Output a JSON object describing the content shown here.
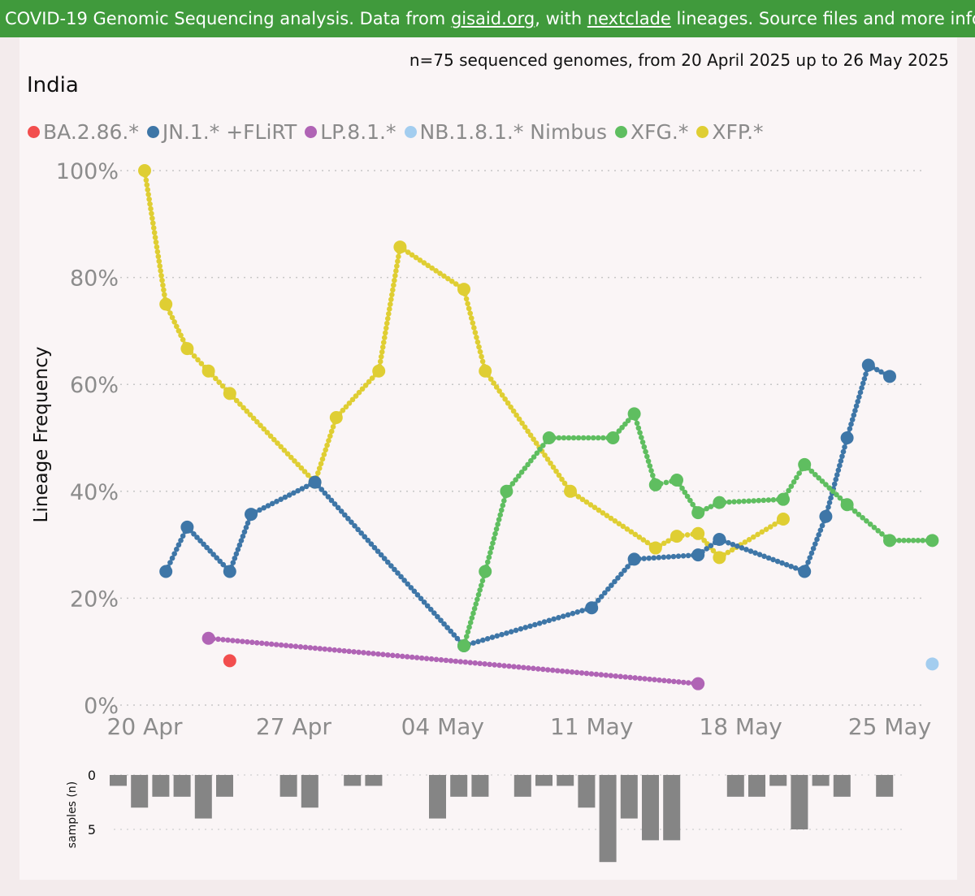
{
  "banner": {
    "prefix": "COVID-19 Genomic Sequencing analysis. Data from ",
    "link1": "gisaid.org",
    "middle": ", with ",
    "link2": "nextclade",
    "suffix": " lineages. Source files and more info"
  },
  "header": {
    "subtitle": "n=75 sequenced genomes, from 20 April 2025 up to 26 May 2025",
    "title": "India"
  },
  "legend": [
    {
      "name": "BA.2.86.*",
      "color": "#f24e4e"
    },
    {
      "name": "JN.1.* +FLiRT",
      "color": "#3e76a7"
    },
    {
      "name": "LP.8.1.*",
      "color": "#b064b5"
    },
    {
      "name": "NB.1.8.1.* Nimbus",
      "color": "#a3cdef"
    },
    {
      "name": "XFG.*",
      "color": "#5fbe60"
    },
    {
      "name": "XFP.*",
      "color": "#dfce33"
    }
  ],
  "chart_data": [
    {
      "type": "line",
      "ylabel": "Lineage Frequency",
      "ylim": [
        0,
        100
      ],
      "y_ticks": [
        "0%",
        "20%",
        "40%",
        "60%",
        "80%",
        "100%"
      ],
      "x_range": [
        "2025-04-20",
        "2025-05-26"
      ],
      "x_ticks": [
        {
          "date": "2025-04-20",
          "label": "20 Apr"
        },
        {
          "date": "2025-04-27",
          "label": "27 Apr"
        },
        {
          "date": "2025-05-04",
          "label": "04 May"
        },
        {
          "date": "2025-05-11",
          "label": "11 May"
        },
        {
          "date": "2025-05-18",
          "label": "18 May"
        },
        {
          "date": "2025-05-25",
          "label": "25 May"
        }
      ],
      "grid": "horizontal dotted",
      "legend_position": "top",
      "series": [
        {
          "name": "XFP.*",
          "color": "#dfce33",
          "points": [
            [
              "2025-04-20",
              100
            ],
            [
              "2025-04-21",
              75
            ],
            [
              "2025-04-22",
              66.7
            ],
            [
              "2025-04-23",
              62.5
            ],
            [
              "2025-04-24",
              58.3
            ],
            [
              "2025-04-28",
              41.7
            ],
            [
              "2025-04-29",
              53.8
            ],
            [
              "2025-05-01",
              62.5
            ],
            [
              "2025-05-02",
              85.7
            ],
            [
              "2025-05-05",
              77.8
            ],
            [
              "2025-05-06",
              62.5
            ],
            [
              "2025-05-10",
              40
            ],
            [
              "2025-05-14",
              29.4
            ],
            [
              "2025-05-15",
              31.6
            ],
            [
              "2025-05-16",
              32.1
            ],
            [
              "2025-05-17",
              27.6
            ],
            [
              "2025-05-20",
              34.8
            ]
          ]
        },
        {
          "name": "JN.1.* +FLiRT",
          "color": "#3e76a7",
          "points": [
            [
              "2025-04-21",
              25
            ],
            [
              "2025-04-22",
              33.3
            ],
            [
              "2025-04-24",
              25
            ],
            [
              "2025-04-25",
              35.7
            ],
            [
              "2025-04-28",
              41.7
            ],
            [
              "2025-05-05",
              11.1
            ],
            [
              "2025-05-11",
              18.2
            ],
            [
              "2025-05-13",
              27.3
            ],
            [
              "2025-05-16",
              28.1
            ],
            [
              "2025-05-17",
              31
            ],
            [
              "2025-05-21",
              25
            ],
            [
              "2025-05-22",
              35.3
            ],
            [
              "2025-05-23",
              50
            ],
            [
              "2025-05-24",
              63.6
            ],
            [
              "2025-05-25",
              61.5
            ]
          ]
        },
        {
          "name": "XFG.*",
          "color": "#5fbe60",
          "points": [
            [
              "2025-05-05",
              11.1
            ],
            [
              "2025-05-06",
              25
            ],
            [
              "2025-05-07",
              40
            ],
            [
              "2025-05-09",
              50
            ],
            [
              "2025-05-12",
              50
            ],
            [
              "2025-05-13",
              54.5
            ],
            [
              "2025-05-14",
              41.2
            ],
            [
              "2025-05-15",
              42.1
            ],
            [
              "2025-05-16",
              36
            ],
            [
              "2025-05-17",
              37.9
            ],
            [
              "2025-05-20",
              38.5
            ],
            [
              "2025-05-21",
              45
            ],
            [
              "2025-05-23",
              37.5
            ],
            [
              "2025-05-25",
              30.8
            ],
            [
              "2025-05-27",
              30.8
            ]
          ]
        },
        {
          "name": "LP.8.1.*",
          "color": "#b064b5",
          "points": [
            [
              "2025-04-23",
              12.5
            ],
            [
              "2025-05-16",
              4
            ]
          ]
        },
        {
          "name": "BA.2.86.*",
          "color": "#f24e4e",
          "points": [
            [
              "2025-04-24",
              8.3
            ]
          ]
        },
        {
          "name": "NB.1.8.1.* Nimbus",
          "color": "#a3cdef",
          "points": [
            [
              "2025-05-27",
              7.7
            ]
          ]
        }
      ]
    },
    {
      "type": "bar",
      "ylabel": "samples (n)",
      "y_ticks": [
        "0",
        "5"
      ],
      "ylim": [
        0,
        8
      ],
      "color": "#858585",
      "bars": [
        [
          "2025-04-20",
          1
        ],
        [
          "2025-04-21",
          3
        ],
        [
          "2025-04-22",
          2
        ],
        [
          "2025-04-23",
          2
        ],
        [
          "2025-04-24",
          4
        ],
        [
          "2025-04-25",
          2
        ],
        [
          "2025-04-28",
          2
        ],
        [
          "2025-04-29",
          3
        ],
        [
          "2025-05-01",
          1
        ],
        [
          "2025-05-02",
          1
        ],
        [
          "2025-05-05",
          4
        ],
        [
          "2025-05-06",
          2
        ],
        [
          "2025-05-07",
          2
        ],
        [
          "2025-05-09",
          2
        ],
        [
          "2025-05-10",
          1
        ],
        [
          "2025-05-11",
          1
        ],
        [
          "2025-05-12",
          3
        ],
        [
          "2025-05-13",
          8
        ],
        [
          "2025-05-14",
          4
        ],
        [
          "2025-05-15",
          6
        ],
        [
          "2025-05-16",
          6
        ],
        [
          "2025-05-19",
          2
        ],
        [
          "2025-05-20",
          2
        ],
        [
          "2025-05-21",
          1
        ],
        [
          "2025-05-22",
          5
        ],
        [
          "2025-05-23",
          1
        ],
        [
          "2025-05-24",
          2
        ],
        [
          "2025-05-26",
          2
        ]
      ]
    }
  ]
}
